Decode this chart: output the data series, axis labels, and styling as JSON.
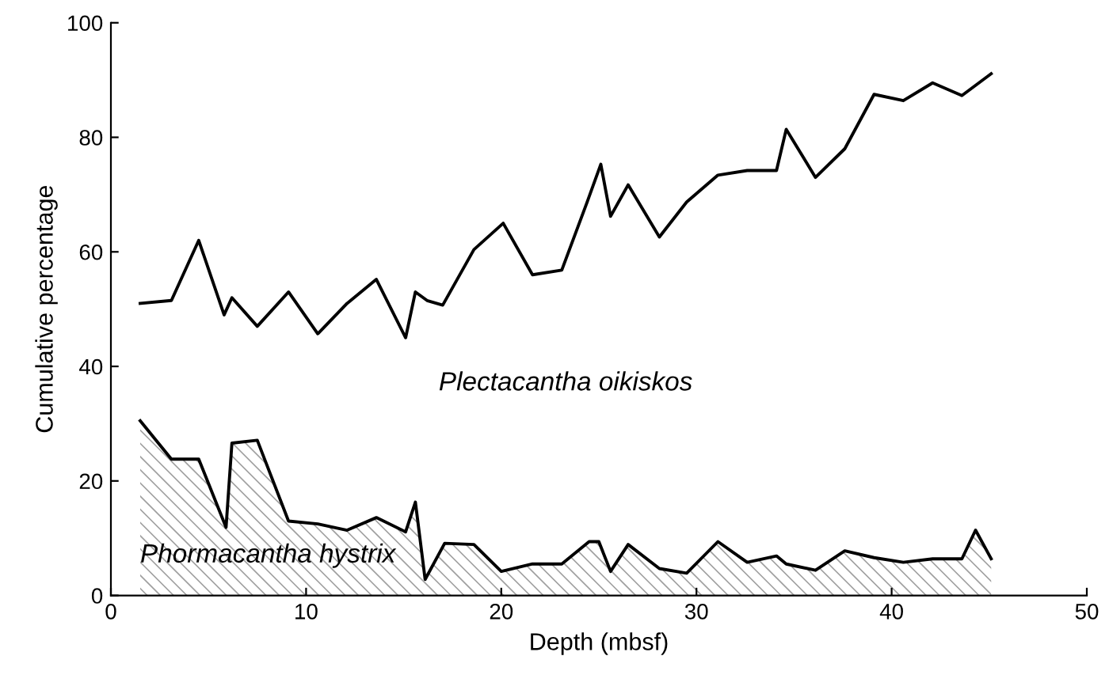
{
  "chart_data": {
    "type": "line",
    "xlabel": "Depth (mbsf)",
    "ylabel": "Cumulative percentage",
    "xlim": [
      0,
      50
    ],
    "xticks": [
      0,
      10,
      20,
      30,
      40,
      50
    ],
    "ylim": [
      0,
      100
    ],
    "yticks": [
      0,
      20,
      40,
      60,
      80,
      100
    ],
    "grid": false,
    "legend": false,
    "series": [
      {
        "name": "Plectacantha oikiskos",
        "color": "#000000",
        "x": [
          1.5,
          3.1,
          4.5,
          5.8,
          6.2,
          7.5,
          9.1,
          10.6,
          12.1,
          13.6,
          15.1,
          15.6,
          16.2,
          17,
          18.6,
          20.1,
          21.6,
          23.1,
          24.4,
          25.1,
          25.6,
          26.5,
          28.1,
          29.5,
          31.1,
          32.6,
          34.1,
          34.6,
          36.1,
          37.6,
          39.1,
          40.6,
          42.1,
          43.6,
          45.1
        ],
        "values": [
          51,
          51.5,
          62,
          49,
          52,
          47,
          53,
          45.7,
          51,
          55.2,
          45,
          53,
          51.5,
          50.7,
          60.4,
          65,
          56,
          56.8,
          68.7,
          75.3,
          66.2,
          71.7,
          62.6,
          68.7,
          73.4,
          74.2,
          74.2,
          81.4,
          73,
          78,
          87.5,
          86.4,
          89.5,
          87.3,
          91.1
        ]
      },
      {
        "name": "Phormacantha hystrix",
        "type": "area",
        "color": "#000000",
        "x": [
          1.5,
          3.1,
          4.5,
          5.9,
          6.2,
          7.5,
          9.1,
          10.6,
          12.1,
          13.6,
          15.1,
          15.6,
          16.1,
          17.1,
          18.6,
          20,
          21.6,
          23.1,
          24.5,
          25,
          25.6,
          26.5,
          28.1,
          29.5,
          31.1,
          32.6,
          34.1,
          34.6,
          36.1,
          37.6,
          39.1,
          40.6,
          42.1,
          43.6,
          44.3,
          45.1
        ],
        "values": [
          30.5,
          23.8,
          23.8,
          11.9,
          26.6,
          27.1,
          13,
          12.5,
          11.4,
          13.6,
          11.1,
          16.3,
          2.8,
          9.1,
          8.9,
          4.2,
          5.5,
          5.5,
          9.4,
          9.4,
          4.2,
          8.9,
          4.7,
          3.9,
          9.4,
          5.8,
          6.9,
          5.5,
          4.4,
          7.8,
          6.6,
          5.8,
          6.4,
          6.4,
          11.4,
          6.4
        ]
      }
    ]
  }
}
